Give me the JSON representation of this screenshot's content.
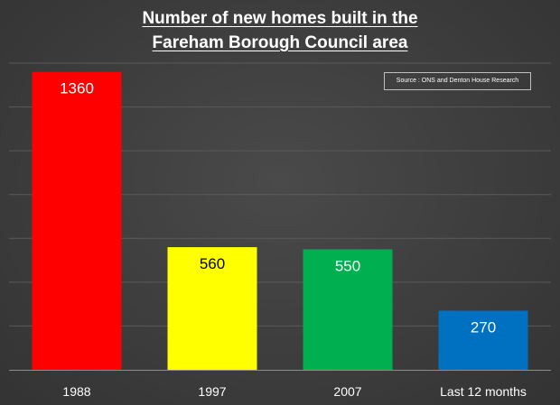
{
  "chart_data": {
    "type": "bar",
    "title_lines": [
      "Number of new homes built in the",
      "Fareham Borough Council area"
    ],
    "source": "Source : ONS and Denton House Research",
    "categories": [
      "1988",
      "1997",
      "2007",
      "Last 12 months"
    ],
    "values": [
      1360,
      560,
      550,
      270
    ],
    "value_labels": [
      "1360",
      "560",
      "550",
      "270"
    ],
    "colors": [
      "#ff0000",
      "#ffff00",
      "#00b050",
      "#0070c0"
    ],
    "ylim": [
      0,
      1400
    ],
    "grid": true,
    "xlabel": "",
    "ylabel": ""
  }
}
